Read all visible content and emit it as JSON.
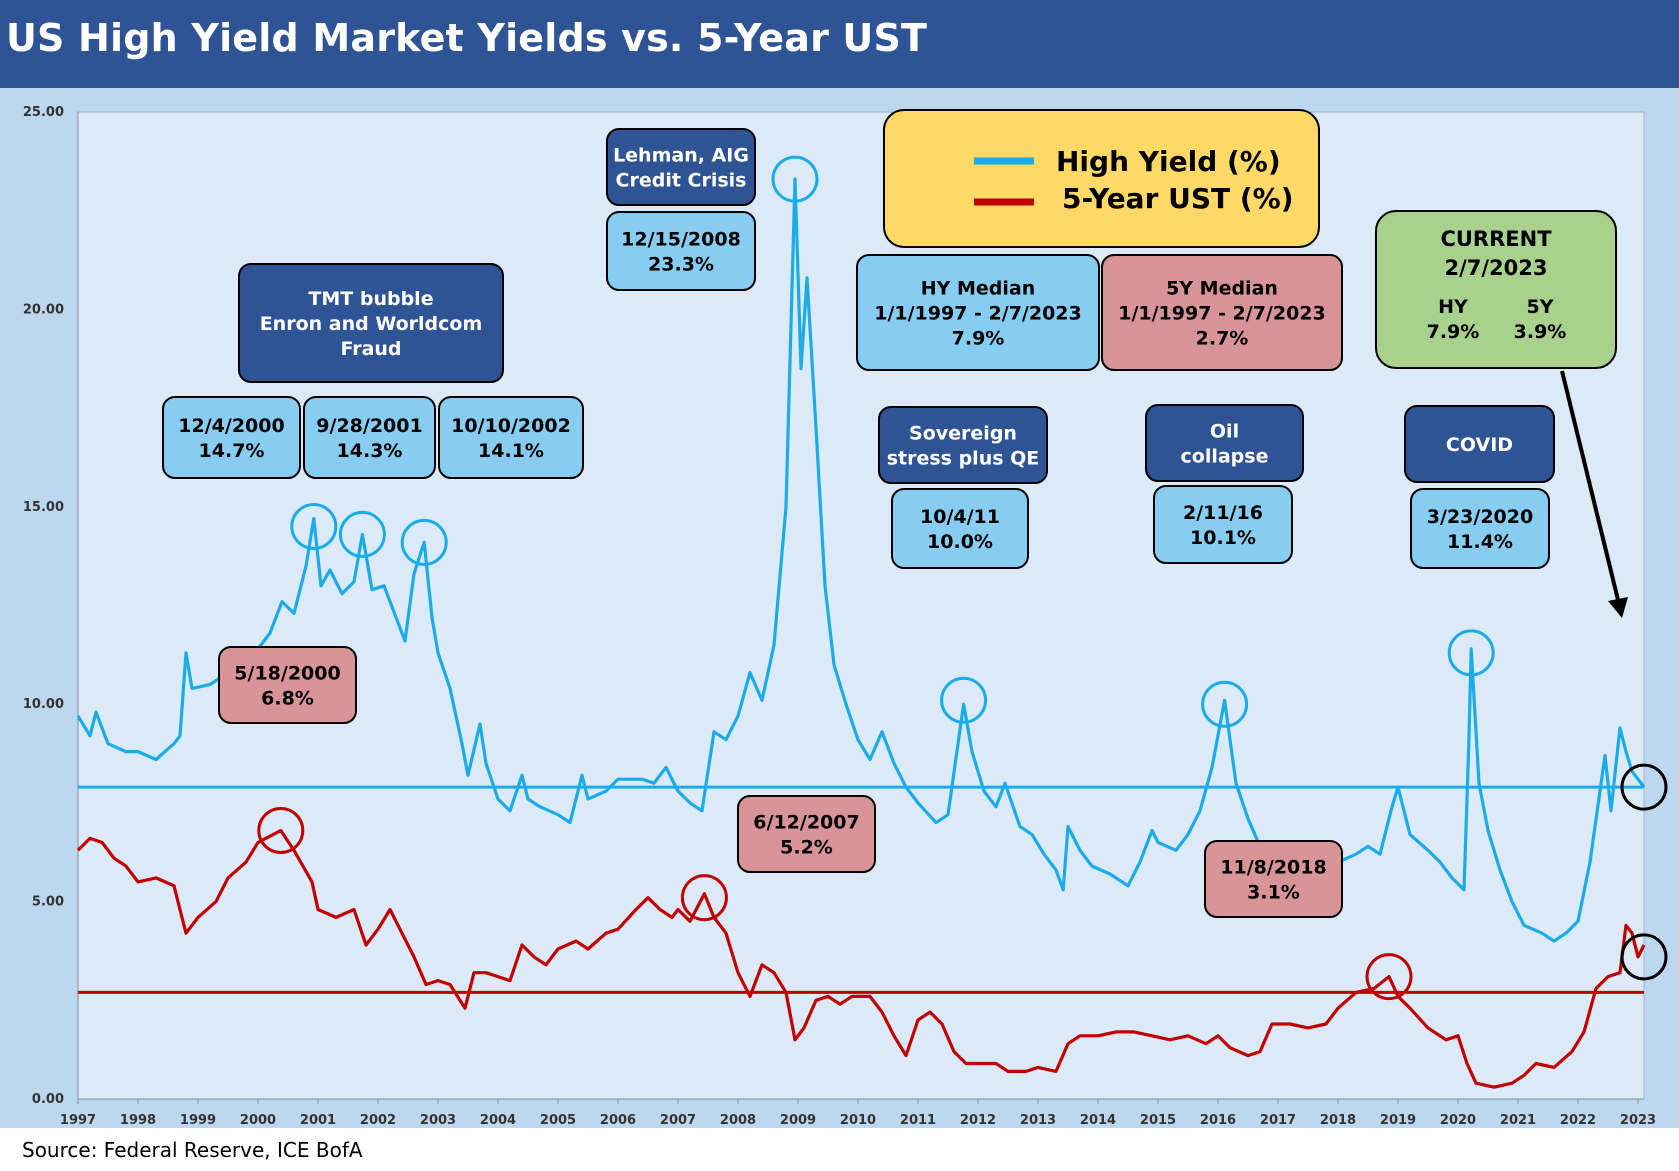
{
  "title": "US High Yield Market Yields vs. 5-Year UST",
  "source": "Source: Federal Reserve, ICE BofA",
  "colors": {
    "title_bar": "#2f5496",
    "panel": "#bdd7ee",
    "plot": "#dce9f6",
    "hy": "#1aace8",
    "ust": "#c00000",
    "navy_box": "#2f5496",
    "blue_box": "#87cdf2",
    "red_box": "#d99499",
    "legend_box": "#ffd966",
    "current_box": "#a9d18e"
  },
  "legend": {
    "hy": "High Yield (%)",
    "ust": "5-Year UST (%)"
  },
  "events": [
    {
      "label": [
        "TMT bubble",
        "Enron and Worldcom",
        "Fraud"
      ]
    },
    {
      "label": [
        "12/4/2000",
        "14.7%"
      ]
    },
    {
      "label": [
        "9/28/2001",
        "14.3%"
      ]
    },
    {
      "label": [
        "10/10/2002",
        "14.1%"
      ]
    },
    {
      "label": [
        "Lehman, AIG",
        "Credit Crisis"
      ]
    },
    {
      "label": [
        "12/15/2008",
        "23.3%"
      ]
    },
    {
      "label": [
        "HY Median",
        "1/1/1997 - 2/7/2023",
        "7.9%"
      ]
    },
    {
      "label": [
        "5Y Median",
        "1/1/1997 - 2/7/2023",
        "2.7%"
      ]
    },
    {
      "label": [
        "Sovereign",
        "stress plus QE"
      ]
    },
    {
      "label": [
        "10/4/11",
        "10.0%"
      ]
    },
    {
      "label": [
        "Oil",
        "collapse"
      ]
    },
    {
      "label": [
        "2/11/16",
        "10.1%"
      ]
    },
    {
      "label": [
        "COVID"
      ]
    },
    {
      "label": [
        "3/23/2020",
        "11.4%"
      ]
    },
    {
      "label": [
        "5/18/2000",
        "6.8%"
      ]
    },
    {
      "label": [
        "6/12/2007",
        "5.2%"
      ]
    },
    {
      "label": [
        "11/8/2018",
        "3.1%"
      ]
    }
  ],
  "current": {
    "title": "CURRENT",
    "date": "2/7/2023",
    "hy_label": "HY",
    "ust_label": "5Y",
    "hy_value": "7.9%",
    "ust_value": "3.9%"
  },
  "chart_data": {
    "type": "line",
    "title": "US High Yield Market Yields vs. 5-Year UST",
    "xlim": [
      1997,
      2023.1
    ],
    "ylim": [
      0,
      25
    ],
    "y_ticks": [
      "0.00",
      "5.00",
      "10.00",
      "15.00",
      "20.00",
      "25.00"
    ],
    "x_ticks": [
      "1997",
      "1998",
      "1999",
      "2000",
      "2001",
      "2002",
      "2003",
      "2004",
      "2005",
      "2006",
      "2007",
      "2008",
      "2009",
      "2010",
      "2011",
      "2012",
      "2013",
      "2014",
      "2015",
      "2016",
      "2017",
      "2018",
      "2019",
      "2020",
      "2021",
      "2022",
      "2023"
    ],
    "medians": {
      "hy": 7.9,
      "ust": 2.7
    },
    "series": [
      {
        "name": "High Yield (%)",
        "points": [
          [
            1997.0,
            9.7
          ],
          [
            1997.2,
            9.2
          ],
          [
            1997.3,
            9.8
          ],
          [
            1997.5,
            9.0
          ],
          [
            1997.8,
            8.8
          ],
          [
            1998.0,
            8.8
          ],
          [
            1998.3,
            8.6
          ],
          [
            1998.6,
            9.0
          ],
          [
            1998.7,
            9.2
          ],
          [
            1998.8,
            11.3
          ],
          [
            1998.9,
            10.4
          ],
          [
            1999.2,
            10.5
          ],
          [
            1999.5,
            10.8
          ],
          [
            1999.8,
            11.2
          ],
          [
            2000.0,
            11.4
          ],
          [
            2000.2,
            11.8
          ],
          [
            2000.4,
            12.6
          ],
          [
            2000.6,
            12.3
          ],
          [
            2000.8,
            13.5
          ],
          [
            2000.93,
            14.7
          ],
          [
            2001.05,
            13.0
          ],
          [
            2001.2,
            13.4
          ],
          [
            2001.4,
            12.8
          ],
          [
            2001.6,
            13.1
          ],
          [
            2001.74,
            14.3
          ],
          [
            2001.9,
            12.9
          ],
          [
            2002.1,
            13.0
          ],
          [
            2002.3,
            12.2
          ],
          [
            2002.45,
            11.6
          ],
          [
            2002.6,
            13.3
          ],
          [
            2002.77,
            14.1
          ],
          [
            2002.9,
            12.2
          ],
          [
            2003.0,
            11.3
          ],
          [
            2003.2,
            10.4
          ],
          [
            2003.4,
            9.0
          ],
          [
            2003.5,
            8.2
          ],
          [
            2003.7,
            9.5
          ],
          [
            2003.8,
            8.5
          ],
          [
            2004.0,
            7.6
          ],
          [
            2004.2,
            7.3
          ],
          [
            2004.4,
            8.2
          ],
          [
            2004.5,
            7.6
          ],
          [
            2004.7,
            7.4
          ],
          [
            2005.0,
            7.2
          ],
          [
            2005.2,
            7.0
          ],
          [
            2005.4,
            8.2
          ],
          [
            2005.5,
            7.6
          ],
          [
            2005.8,
            7.8
          ],
          [
            2006.0,
            8.1
          ],
          [
            2006.4,
            8.1
          ],
          [
            2006.6,
            8.0
          ],
          [
            2006.8,
            8.4
          ],
          [
            2007.0,
            7.8
          ],
          [
            2007.2,
            7.5
          ],
          [
            2007.4,
            7.3
          ],
          [
            2007.6,
            9.3
          ],
          [
            2007.8,
            9.1
          ],
          [
            2008.0,
            9.7
          ],
          [
            2008.2,
            10.8
          ],
          [
            2008.4,
            10.1
          ],
          [
            2008.6,
            11.5
          ],
          [
            2008.8,
            15.0
          ],
          [
            2008.95,
            23.3
          ],
          [
            2009.05,
            18.5
          ],
          [
            2009.15,
            20.8
          ],
          [
            2009.3,
            17.0
          ],
          [
            2009.45,
            13.0
          ],
          [
            2009.6,
            11.0
          ],
          [
            2009.8,
            10.0
          ],
          [
            2010.0,
            9.1
          ],
          [
            2010.2,
            8.6
          ],
          [
            2010.4,
            9.3
          ],
          [
            2010.6,
            8.5
          ],
          [
            2010.8,
            7.9
          ],
          [
            2011.0,
            7.5
          ],
          [
            2011.3,
            7.0
          ],
          [
            2011.5,
            7.2
          ],
          [
            2011.76,
            10.0
          ],
          [
            2011.9,
            8.8
          ],
          [
            2012.1,
            7.8
          ],
          [
            2012.3,
            7.4
          ],
          [
            2012.45,
            8.0
          ],
          [
            2012.7,
            6.9
          ],
          [
            2012.9,
            6.7
          ],
          [
            2013.1,
            6.2
          ],
          [
            2013.3,
            5.8
          ],
          [
            2013.42,
            5.3
          ],
          [
            2013.5,
            6.9
          ],
          [
            2013.7,
            6.3
          ],
          [
            2013.9,
            5.9
          ],
          [
            2014.2,
            5.7
          ],
          [
            2014.5,
            5.4
          ],
          [
            2014.7,
            6.0
          ],
          [
            2014.9,
            6.8
          ],
          [
            2015.0,
            6.5
          ],
          [
            2015.3,
            6.3
          ],
          [
            2015.5,
            6.7
          ],
          [
            2015.7,
            7.3
          ],
          [
            2015.9,
            8.4
          ],
          [
            2016.11,
            10.1
          ],
          [
            2016.3,
            8.0
          ],
          [
            2016.5,
            7.1
          ],
          [
            2016.7,
            6.4
          ],
          [
            2016.9,
            6.2
          ],
          [
            2017.2,
            6.0
          ],
          [
            2017.5,
            5.8
          ],
          [
            2017.8,
            5.7
          ],
          [
            2018.0,
            6.0
          ],
          [
            2018.3,
            6.2
          ],
          [
            2018.5,
            6.4
          ],
          [
            2018.7,
            6.2
          ],
          [
            2018.9,
            7.4
          ],
          [
            2019.0,
            7.9
          ],
          [
            2019.2,
            6.7
          ],
          [
            2019.5,
            6.3
          ],
          [
            2019.7,
            6.0
          ],
          [
            2019.9,
            5.6
          ],
          [
            2020.1,
            5.3
          ],
          [
            2020.18,
            9.0
          ],
          [
            2020.22,
            11.4
          ],
          [
            2020.35,
            8.0
          ],
          [
            2020.5,
            6.8
          ],
          [
            2020.7,
            5.8
          ],
          [
            2020.9,
            5.0
          ],
          [
            2021.1,
            4.4
          ],
          [
            2021.4,
            4.2
          ],
          [
            2021.6,
            4.0
          ],
          [
            2021.8,
            4.2
          ],
          [
            2022.0,
            4.5
          ],
          [
            2022.2,
            6.0
          ],
          [
            2022.45,
            8.7
          ],
          [
            2022.55,
            7.3
          ],
          [
            2022.7,
            9.4
          ],
          [
            2022.8,
            8.8
          ],
          [
            2022.9,
            8.3
          ],
          [
            2023.1,
            7.9
          ]
        ]
      },
      {
        "name": "5-Year UST (%)",
        "points": [
          [
            1997.0,
            6.3
          ],
          [
            1997.2,
            6.6
          ],
          [
            1997.4,
            6.5
          ],
          [
            1997.6,
            6.1
          ],
          [
            1997.8,
            5.9
          ],
          [
            1998.0,
            5.5
          ],
          [
            1998.3,
            5.6
          ],
          [
            1998.6,
            5.4
          ],
          [
            1998.8,
            4.2
          ],
          [
            1999.0,
            4.6
          ],
          [
            1999.3,
            5.0
          ],
          [
            1999.5,
            5.6
          ],
          [
            1999.8,
            6.0
          ],
          [
            2000.0,
            6.5
          ],
          [
            2000.38,
            6.8
          ],
          [
            2000.6,
            6.3
          ],
          [
            2000.9,
            5.5
          ],
          [
            2001.0,
            4.8
          ],
          [
            2001.3,
            4.6
          ],
          [
            2001.6,
            4.8
          ],
          [
            2001.8,
            3.9
          ],
          [
            2002.0,
            4.3
          ],
          [
            2002.2,
            4.8
          ],
          [
            2002.4,
            4.2
          ],
          [
            2002.6,
            3.6
          ],
          [
            2002.8,
            2.9
          ],
          [
            2003.0,
            3.0
          ],
          [
            2003.2,
            2.9
          ],
          [
            2003.45,
            2.3
          ],
          [
            2003.6,
            3.2
          ],
          [
            2003.8,
            3.2
          ],
          [
            2004.0,
            3.1
          ],
          [
            2004.2,
            3.0
          ],
          [
            2004.4,
            3.9
          ],
          [
            2004.6,
            3.6
          ],
          [
            2004.8,
            3.4
          ],
          [
            2005.0,
            3.8
          ],
          [
            2005.3,
            4.0
          ],
          [
            2005.5,
            3.8
          ],
          [
            2005.8,
            4.2
          ],
          [
            2006.0,
            4.3
          ],
          [
            2006.3,
            4.8
          ],
          [
            2006.5,
            5.1
          ],
          [
            2006.7,
            4.8
          ],
          [
            2006.9,
            4.6
          ],
          [
            2007.0,
            4.8
          ],
          [
            2007.2,
            4.5
          ],
          [
            2007.44,
            5.2
          ],
          [
            2007.6,
            4.6
          ],
          [
            2007.8,
            4.2
          ],
          [
            2008.0,
            3.2
          ],
          [
            2008.2,
            2.6
          ],
          [
            2008.4,
            3.4
          ],
          [
            2008.6,
            3.2
          ],
          [
            2008.8,
            2.7
          ],
          [
            2008.95,
            1.5
          ],
          [
            2009.1,
            1.8
          ],
          [
            2009.3,
            2.5
          ],
          [
            2009.5,
            2.6
          ],
          [
            2009.7,
            2.4
          ],
          [
            2009.9,
            2.6
          ],
          [
            2010.2,
            2.6
          ],
          [
            2010.4,
            2.2
          ],
          [
            2010.6,
            1.6
          ],
          [
            2010.8,
            1.1
          ],
          [
            2011.0,
            2.0
          ],
          [
            2011.2,
            2.2
          ],
          [
            2011.4,
            1.9
          ],
          [
            2011.6,
            1.2
          ],
          [
            2011.8,
            0.9
          ],
          [
            2012.0,
            0.9
          ],
          [
            2012.3,
            0.9
          ],
          [
            2012.5,
            0.7
          ],
          [
            2012.8,
            0.7
          ],
          [
            2013.0,
            0.8
          ],
          [
            2013.3,
            0.7
          ],
          [
            2013.5,
            1.4
          ],
          [
            2013.7,
            1.6
          ],
          [
            2014.0,
            1.6
          ],
          [
            2014.3,
            1.7
          ],
          [
            2014.6,
            1.7
          ],
          [
            2014.9,
            1.6
          ],
          [
            2015.2,
            1.5
          ],
          [
            2015.5,
            1.6
          ],
          [
            2015.8,
            1.4
          ],
          [
            2016.0,
            1.6
          ],
          [
            2016.2,
            1.3
          ],
          [
            2016.5,
            1.1
          ],
          [
            2016.7,
            1.2
          ],
          [
            2016.9,
            1.9
          ],
          [
            2017.2,
            1.9
          ],
          [
            2017.5,
            1.8
          ],
          [
            2017.8,
            1.9
          ],
          [
            2018.0,
            2.3
          ],
          [
            2018.3,
            2.7
          ],
          [
            2018.6,
            2.8
          ],
          [
            2018.85,
            3.1
          ],
          [
            2019.0,
            2.6
          ],
          [
            2019.2,
            2.3
          ],
          [
            2019.5,
            1.8
          ],
          [
            2019.8,
            1.5
          ],
          [
            2020.0,
            1.6
          ],
          [
            2020.15,
            0.9
          ],
          [
            2020.3,
            0.4
          ],
          [
            2020.6,
            0.3
          ],
          [
            2020.9,
            0.4
          ],
          [
            2021.1,
            0.6
          ],
          [
            2021.3,
            0.9
          ],
          [
            2021.6,
            0.8
          ],
          [
            2021.9,
            1.2
          ],
          [
            2022.1,
            1.7
          ],
          [
            2022.3,
            2.8
          ],
          [
            2022.5,
            3.1
          ],
          [
            2022.7,
            3.2
          ],
          [
            2022.8,
            4.4
          ],
          [
            2022.9,
            4.2
          ],
          [
            2023.0,
            3.6
          ],
          [
            2023.1,
            3.9
          ]
        ]
      }
    ]
  }
}
